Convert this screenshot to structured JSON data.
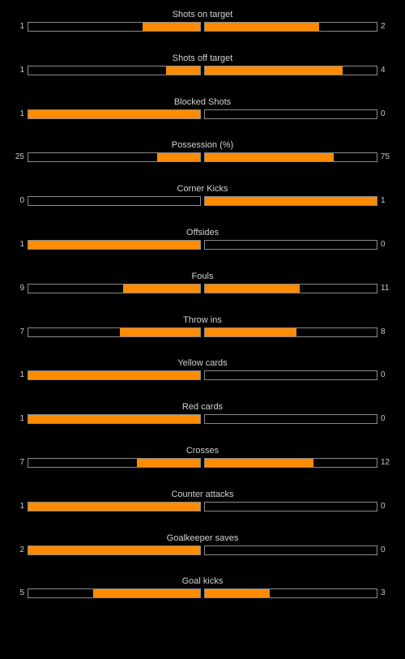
{
  "theme": {
    "background": "#000000",
    "fill_color": "#ff8c00",
    "border_color": "#8a8a8a",
    "text_color": "#c8c8c8"
  },
  "stats": [
    {
      "name": "shots-on-target",
      "label": "Shots on target",
      "home": "1",
      "away": "2",
      "home_share": 0.3333,
      "away_share": 0.6667
    },
    {
      "name": "shots-off-target",
      "label": "Shots off target",
      "home": "1",
      "away": "4",
      "home_share": 0.2,
      "away_share": 0.8
    },
    {
      "name": "blocked-shots",
      "label": "Blocked Shots",
      "home": "1",
      "away": "0",
      "home_share": 1.0,
      "away_share": 0.0
    },
    {
      "name": "possession",
      "label": "Possession (%)",
      "home": "25",
      "away": "75",
      "home_share": 0.25,
      "away_share": 0.75
    },
    {
      "name": "corner-kicks",
      "label": "Corner Kicks",
      "home": "0",
      "away": "1",
      "home_share": 0.0,
      "away_share": 1.0
    },
    {
      "name": "offsides",
      "label": "Offsides",
      "home": "1",
      "away": "0",
      "home_share": 1.0,
      "away_share": 0.0
    },
    {
      "name": "fouls",
      "label": "Fouls",
      "home": "9",
      "away": "11",
      "home_share": 0.45,
      "away_share": 0.55
    },
    {
      "name": "throw-ins",
      "label": "Throw ins",
      "home": "7",
      "away": "8",
      "home_share": 0.4667,
      "away_share": 0.5333
    },
    {
      "name": "yellow-cards",
      "label": "Yellow cards",
      "home": "1",
      "away": "0",
      "home_share": 1.0,
      "away_share": 0.0
    },
    {
      "name": "red-cards",
      "label": "Red cards",
      "home": "1",
      "away": "0",
      "home_share": 1.0,
      "away_share": 0.0
    },
    {
      "name": "crosses",
      "label": "Crosses",
      "home": "7",
      "away": "12",
      "home_share": 0.3684,
      "away_share": 0.6316
    },
    {
      "name": "counter-attacks",
      "label": "Counter attacks",
      "home": "1",
      "away": "0",
      "home_share": 1.0,
      "away_share": 0.0
    },
    {
      "name": "goalkeeper-saves",
      "label": "Goalkeeper saves",
      "home": "2",
      "away": "0",
      "home_share": 1.0,
      "away_share": 0.0
    },
    {
      "name": "goal-kicks",
      "label": "Goal kicks",
      "home": "5",
      "away": "3",
      "home_share": 0.625,
      "away_share": 0.375
    }
  ]
}
